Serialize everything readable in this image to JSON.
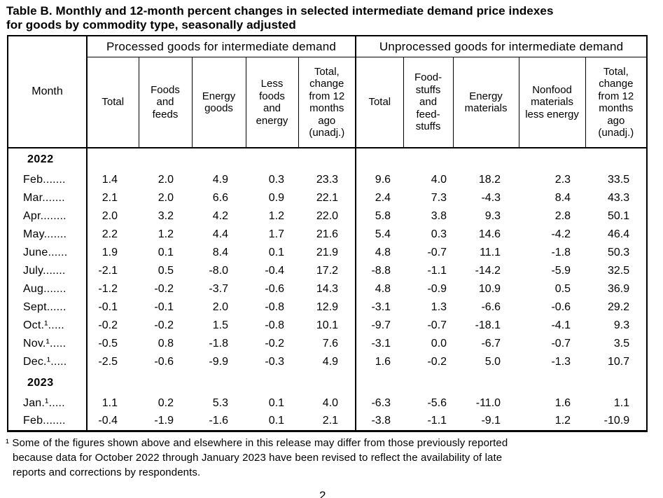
{
  "title": {
    "line1": "Table B. Monthly and 12-month percent changes in selected intermediate demand price indexes",
    "line2": "for goods by commodity type, seasonally adjusted"
  },
  "table": {
    "month_header": "Month",
    "group_headers": [
      "Processed goods for intermediate demand",
      "Unprocessed goods for intermediate demand"
    ],
    "columns": [
      "Total",
      "Foods and feeds",
      "Energy goods",
      "Less foods and energy",
      "Total, change from 12 months ago (unadj.)",
      "Total",
      "Food-stuffs and feed-stuffs",
      "Energy materials",
      "Nonfood materials less energy",
      "Total, change from 12 months ago (unadj.)"
    ],
    "body_rows": [
      {
        "type": "year",
        "label": "2022"
      },
      {
        "type": "data",
        "month": "Feb.......",
        "values": [
          "1.4",
          "2.0",
          "4.9",
          "0.3",
          "23.3",
          "9.6",
          "4.0",
          "18.2",
          "2.3",
          "33.5"
        ]
      },
      {
        "type": "data",
        "month": "Mar.......",
        "values": [
          "2.1",
          "2.0",
          "6.6",
          "0.9",
          "22.1",
          "2.4",
          "7.3",
          "-4.3",
          "8.4",
          "43.3"
        ]
      },
      {
        "type": "data",
        "month": "Apr........",
        "values": [
          "2.0",
          "3.2",
          "4.2",
          "1.2",
          "22.0",
          "5.8",
          "3.8",
          "9.3",
          "2.8",
          "50.1"
        ]
      },
      {
        "type": "data",
        "month": "May.......",
        "values": [
          "2.2",
          "1.2",
          "4.4",
          "1.7",
          "21.6",
          "5.4",
          "0.3",
          "14.6",
          "-4.2",
          "46.4"
        ]
      },
      {
        "type": "data",
        "month": "June......",
        "values": [
          "1.9",
          "0.1",
          "8.4",
          "0.1",
          "21.9",
          "4.8",
          "-0.7",
          "11.1",
          "-1.8",
          "50.3"
        ]
      },
      {
        "type": "data",
        "month": "July.......",
        "values": [
          "-2.1",
          "0.5",
          "-8.0",
          "-0.4",
          "17.2",
          "-8.8",
          "-1.1",
          "-14.2",
          "-5.9",
          "32.5"
        ]
      },
      {
        "type": "data",
        "month": "Aug.......",
        "values": [
          "-1.2",
          "-0.2",
          "-3.7",
          "-0.6",
          "14.3",
          "4.8",
          "-0.9",
          "10.9",
          "0.5",
          "36.9"
        ]
      },
      {
        "type": "data",
        "month": "Sept......",
        "values": [
          "-0.1",
          "-0.1",
          "2.0",
          "-0.8",
          "12.9",
          "-3.1",
          "1.3",
          "-6.6",
          "-0.6",
          "29.2"
        ]
      },
      {
        "type": "data",
        "month": "Oct.¹.....",
        "values": [
          "-0.2",
          "-0.2",
          "1.5",
          "-0.8",
          "10.1",
          "-9.7",
          "-0.7",
          "-18.1",
          "-4.1",
          "9.3"
        ]
      },
      {
        "type": "data",
        "month": "Nov.¹.....",
        "values": [
          "-0.5",
          "0.8",
          "-1.8",
          "-0.2",
          "7.6",
          "-3.1",
          "0.0",
          "-6.7",
          "-0.7",
          "3.5"
        ]
      },
      {
        "type": "data",
        "month": "Dec.¹.....",
        "values": [
          "-2.5",
          "-0.6",
          "-9.9",
          "-0.3",
          "4.9",
          "1.6",
          "-0.2",
          "5.0",
          "-1.3",
          "10.7"
        ]
      },
      {
        "type": "year",
        "label": "2023"
      },
      {
        "type": "data",
        "month": "Jan.¹.....",
        "values": [
          "1.1",
          "0.2",
          "5.3",
          "0.1",
          "4.0",
          "-6.3",
          "-5.6",
          "-11.0",
          "1.6",
          "1.1"
        ]
      },
      {
        "type": "data",
        "month": "Feb.......",
        "values": [
          "-0.4",
          "-1.9",
          "-1.6",
          "0.1",
          "2.1",
          "-3.8",
          "-1.1",
          "-9.1",
          "1.2",
          "-10.9"
        ]
      }
    ]
  },
  "footnote": {
    "line1": "¹ Some of the figures shown above and elsewhere in this release may differ from those previously reported",
    "line2": "because data for October 2022 through January 2023 have been revised to reflect the availability of late",
    "line3": "reports and corrections by respondents."
  },
  "page_number": "2"
}
